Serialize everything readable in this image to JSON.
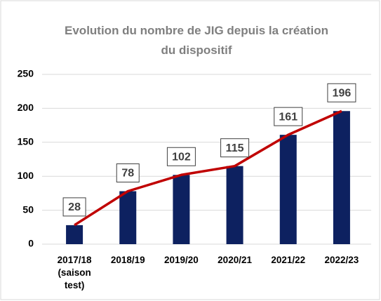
{
  "chart_data": {
    "type": "bar",
    "title": "Evolution du nombre de JIG depuis la création du dispositif",
    "categories": [
      "2017/18 (saison test)",
      "2018/19",
      "2019/20",
      "2020/21",
      "2021/22",
      "2022/23"
    ],
    "values": [
      28,
      78,
      102,
      115,
      161,
      196
    ],
    "color": "#0d2160",
    "line_color": "#c00000",
    "ylim": [
      0,
      250
    ],
    "yticks": [
      0,
      50,
      100,
      150,
      200,
      250
    ],
    "grid": true
  }
}
